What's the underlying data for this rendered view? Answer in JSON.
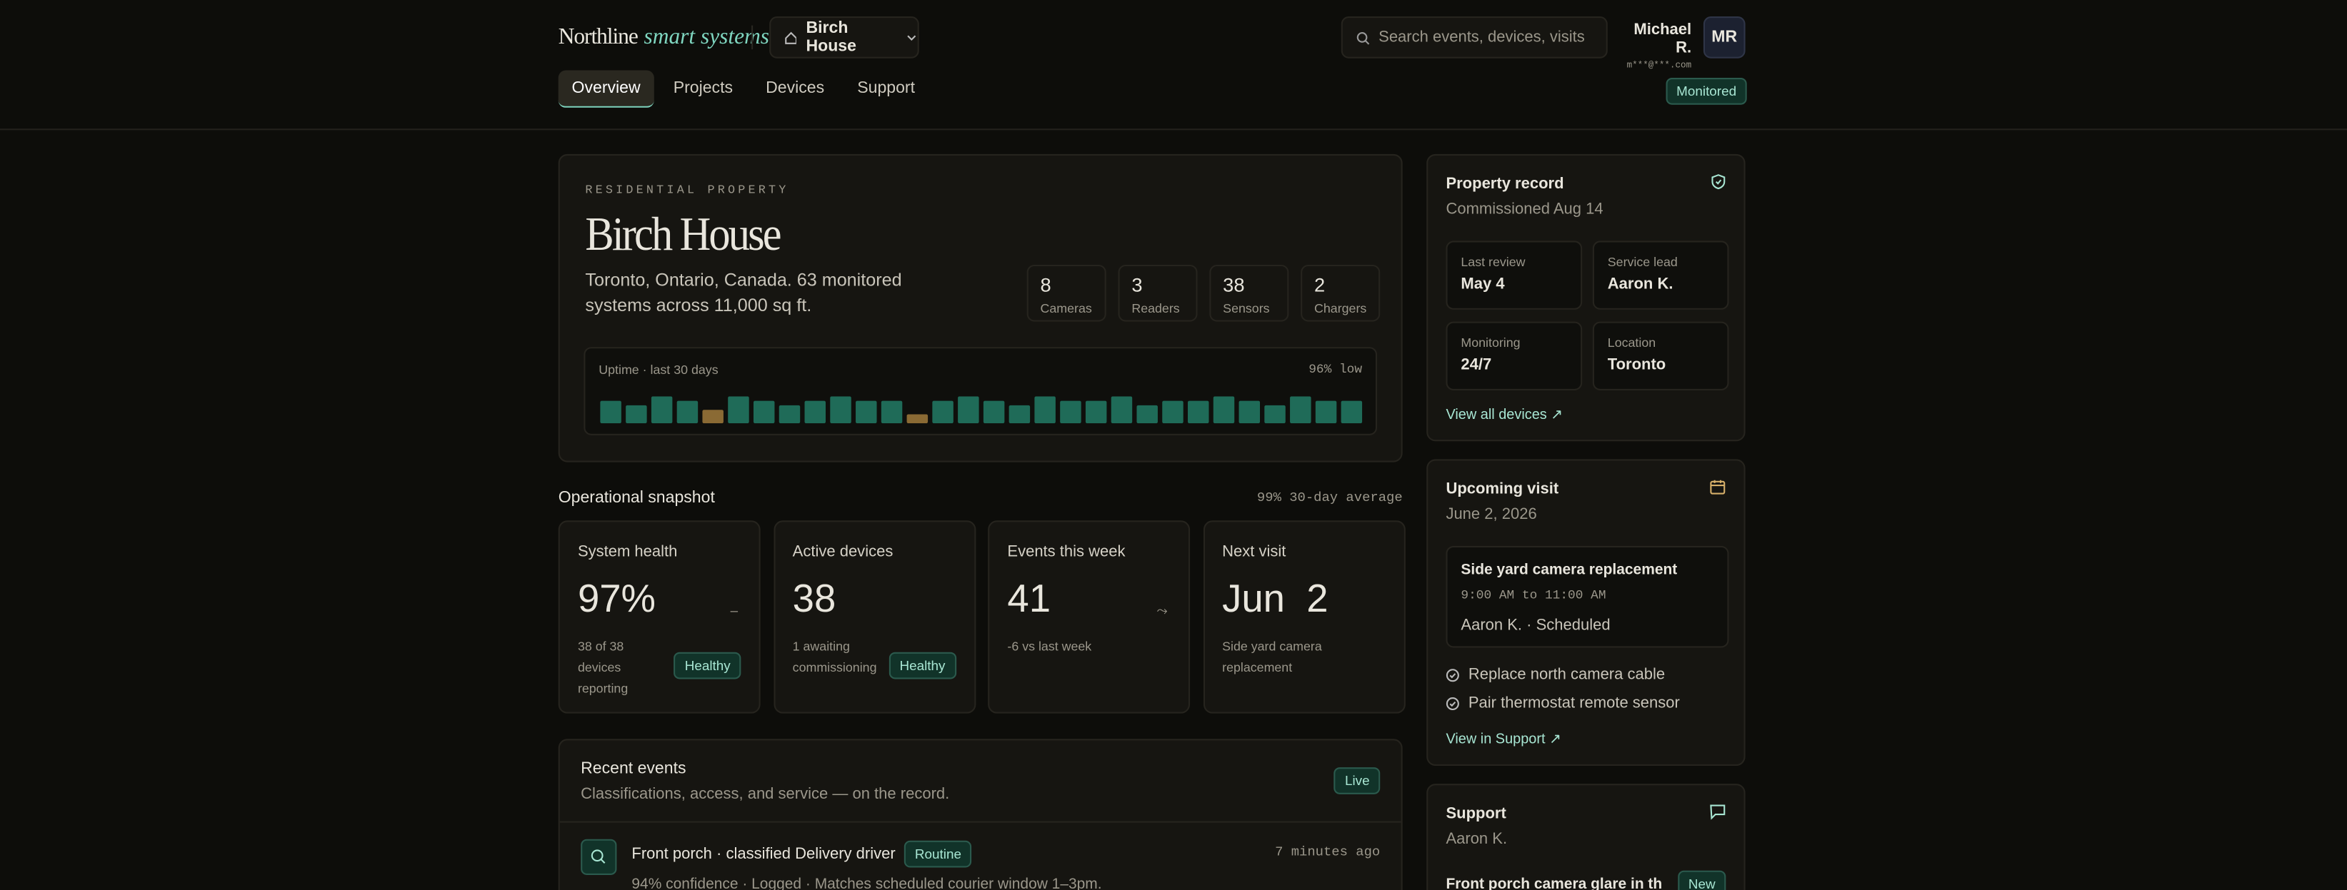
{
  "header": {
    "brand": "Northline",
    "brand_accent": "smart systems",
    "property_switch": "Birch House",
    "search_placeholder": "Search events, devices, visits",
    "user_name": "Michael R.",
    "user_email": "m***@***.com",
    "user_initials": "MR",
    "tabs": [
      "Overview",
      "Projects",
      "Devices",
      "Support"
    ],
    "status": "Monitored"
  },
  "hero": {
    "eyebrow": "RESIDENTIAL PROPERTY",
    "title": "Birch House",
    "description": "Toronto, Ontario, Canada. 63 monitored systems across 11,000 sq ft.",
    "stats": [
      {
        "value": 8,
        "label": "Cameras"
      },
      {
        "value": 3,
        "label": "Readers"
      },
      {
        "value": 38,
        "label": "Sensors"
      },
      {
        "value": 2,
        "label": "Chargers"
      }
    ],
    "uptime": {
      "type": "bar",
      "title": "Uptime · last 30 days",
      "summary": "96% low",
      "ylim": [
        94,
        100
      ],
      "values": [
        99,
        98,
        100,
        99,
        97,
        100,
        99,
        98,
        99,
        100,
        99,
        99,
        96,
        99,
        100,
        99,
        98,
        100,
        99,
        99,
        100,
        98,
        99,
        99,
        100,
        99,
        98,
        100,
        99,
        99
      ],
      "colors": [
        "#1f6b58",
        "#1f6b58",
        "#1f6b58",
        "#1f6b58",
        "#8a6a34",
        "#1f6b58",
        "#1f6b58",
        "#1f6b58",
        "#1f6b58",
        "#1f6b58",
        "#1f6b58",
        "#1f6b58",
        "#8a6a34",
        "#1f6b58",
        "#1f6b58",
        "#1f6b58",
        "#1f6b58",
        "#1f6b58",
        "#1f6b58",
        "#1f6b58",
        "#1f6b58",
        "#1f6b58",
        "#1f6b58",
        "#1f6b58",
        "#1f6b58",
        "#1f6b58",
        "#1f6b58",
        "#1f6b58",
        "#1f6b58",
        "#1f6b58"
      ]
    }
  },
  "snapshot": {
    "title": "Operational snapshot",
    "summary": "99% 30-day average",
    "cards": [
      {
        "title": "System health",
        "value": "97%",
        "trend": "–",
        "note": "38 of 38 devices reporting",
        "badge": "Healthy"
      },
      {
        "title": "Active devices",
        "value": "38",
        "note": "1 awaiting commissioning",
        "badge": "Healthy"
      },
      {
        "title": "Events this week",
        "value": "41",
        "trend": "⤳",
        "note": "-6 vs last week"
      },
      {
        "title": "Next visit",
        "value": "Jun  2",
        "note": "Side yard camera replacement"
      }
    ]
  },
  "events": {
    "title": "Recent events",
    "subtitle": "Classifications, access, and service — on the record.",
    "badge": "Live",
    "items": [
      {
        "title": "Front porch · classified Delivery driver",
        "tag": "Routine",
        "time": "7 minutes ago",
        "detail": "94% confidence · Logged · Matches scheduled courier window 1–3pm."
      }
    ]
  },
  "sidebar": {
    "record": {
      "title": "Property record",
      "subtitle": "Commissioned Aug 14",
      "fields": [
        {
          "label": "Last review",
          "value": "May 4"
        },
        {
          "label": "Service lead",
          "value": "Aaron K."
        },
        {
          "label": "Monitoring",
          "value": "24/7"
        },
        {
          "label": "Location",
          "value": "Toronto"
        }
      ],
      "link": "View all devices"
    },
    "visit": {
      "title": "Upcoming visit",
      "date": "June 2, 2026",
      "visit_title": "Side yard camera replacement",
      "time": "9:00 AM to 11:00 AM",
      "meta": "Aaron K. · Scheduled",
      "tasks": [
        "Replace north camera cable",
        "Pair thermostat remote sensor"
      ],
      "link": "View in Support"
    },
    "support": {
      "title": "Support",
      "subtitle": "Aaron K.",
      "item": "Front porch camera glare in th...",
      "badge": "New"
    }
  }
}
